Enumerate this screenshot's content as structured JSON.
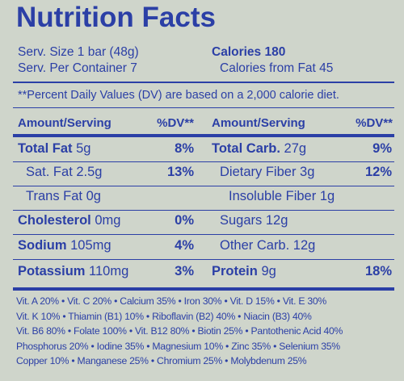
{
  "title": "Nutrition Facts",
  "serving": {
    "size": "Serv. Size 1 bar (48g)",
    "per_container": "Serv. Per Container 7",
    "calories": "Calories 180",
    "calories_from_fat": "Calories from Fat 45"
  },
  "note": "**Percent Daily Values (DV) are based on a 2,000 calorie diet.",
  "headers": [
    "Amount/Serving",
    "%DV**",
    "Amount/Serving",
    "%DV**"
  ],
  "left": [
    {
      "name": "Total Fat",
      "amount": "5g",
      "dv": "8%"
    },
    {
      "name": "Sat. Fat",
      "amount": "2.5g",
      "dv": "13%"
    },
    {
      "name": "Trans Fat",
      "amount": "0g"
    },
    {
      "name": "Cholesterol",
      "amount": "0mg",
      "dv": "0%"
    },
    {
      "name": "Sodium",
      "amount": "105mg",
      "dv": "4%"
    },
    {
      "name": "Potassium",
      "amount": "110mg",
      "dv": "3%"
    }
  ],
  "right": [
    {
      "name": "Total Carb.",
      "amount": "27g",
      "dv": "9%"
    },
    {
      "name": "Dietary Fiber",
      "amount": "3g",
      "dv": "12%"
    },
    {
      "name": "Insoluble Fiber",
      "amount": "1g"
    },
    {
      "name": "Sugars",
      "amount": "12g"
    },
    {
      "name": "Other Carb.",
      "amount": "12g"
    },
    {
      "name": "Protein",
      "amount": "9g",
      "dv": "18%"
    }
  ],
  "vitamins": [
    "Vit. A 20% • Vit. C 20% • Calcium 35% • Iron 30% • Vit. D 15% • Vit. E 30%",
    "Vit. K 10% • Thiamin (B1) 10% • Riboflavin (B2) 40% • Niacin (B3) 40%",
    "Vit. B6 80% • Folate 100% • Vit. B12 80% • Biotin 25% • Pantothenic Acid 40%",
    "Phosphorus 20% • Iodine 35% • Magnesium 10% • Zinc 35% • Selenium 35%",
    "Copper 10% • Manganese 25% • Chromium 25% • Molybdenum 25%"
  ]
}
